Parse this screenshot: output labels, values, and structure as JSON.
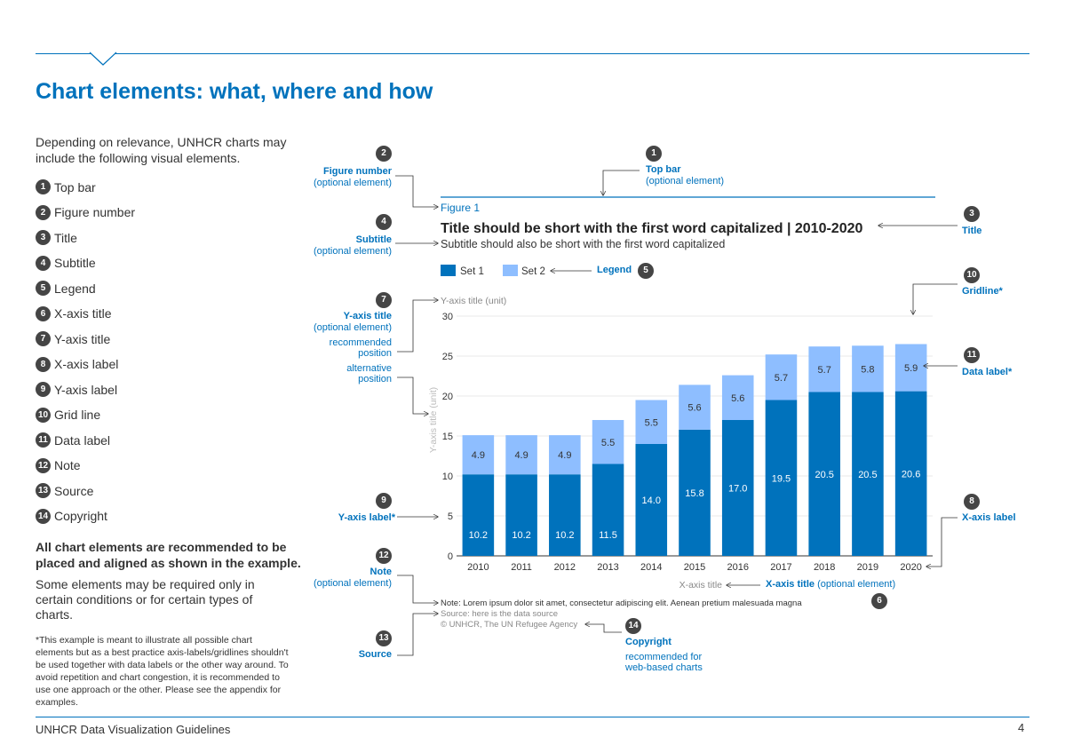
{
  "page": {
    "title": "Chart elements: what, where and how",
    "intro": "Depending on relevance, UNHCR charts may include the following visual elements.",
    "elements": [
      {
        "num": "1",
        "label": "Top bar"
      },
      {
        "num": "2",
        "label": "Figure number"
      },
      {
        "num": "3",
        "label": "Title"
      },
      {
        "num": "4",
        "label": "Subtitle"
      },
      {
        "num": "5",
        "label": "Legend"
      },
      {
        "num": "6",
        "label": "X-axis title"
      },
      {
        "num": "7",
        "label": "Y-axis title"
      },
      {
        "num": "8",
        "label": "X-axis label"
      },
      {
        "num": "9",
        "label": "Y-axis label"
      },
      {
        "num": "10",
        "label": "Grid line"
      },
      {
        "num": "11",
        "label": "Data label"
      },
      {
        "num": "12",
        "label": "Note"
      },
      {
        "num": "13",
        "label": "Source"
      },
      {
        "num": "14",
        "label": "Copyright"
      }
    ],
    "recommendation": "All chart elements are recommended to be placed and aligned as shown in the example.",
    "conditions": "Some elements may be required only in certain conditions or for certain types of charts.",
    "footnote": "*This example is meant to illustrate all possible chart elements but as a best practice axis-labels/gridlines shouldn't be used together with data labels or the other way around. To avoid repetition and chart congestion, it is recommended to use one approach or the other. Please see the appendix for examples.",
    "footer": "UNHCR Data Visualization Guidelines",
    "page_number": "4"
  },
  "annotations": {
    "a1_num": "1",
    "a1_title": "Top bar",
    "a1_sub": "(optional element)",
    "a2_num": "2",
    "a2_title": "Figure number",
    "a2_sub": "(optional element)",
    "a3_num": "3",
    "a3_title": "Title",
    "a4_num": "4",
    "a4_title": "Subtitle",
    "a4_sub": "(optional element)",
    "a5_num": "5",
    "a5_title": "Legend",
    "a6_num": "6",
    "a6_title": "X-axis title",
    "a6_sub": "(optional element)",
    "a7_num": "7",
    "a7_title": "Y-axis title",
    "a7_sub": "(optional element)",
    "a7_rec1": "recommended",
    "a7_rec2": "position",
    "a7_alt1": "alternative",
    "a7_alt2": "position",
    "a8_num": "8",
    "a8_title": "X-axis label",
    "a9_num": "9",
    "a9_title": "Y-axis label*",
    "a10_num": "10",
    "a10_title": "Gridline*",
    "a11_num": "11",
    "a11_title": "Data label*",
    "a12_num": "12",
    "a12_title": "Note",
    "a12_sub": "(optional element)",
    "a13_num": "13",
    "a13_title": "Source",
    "a14_num": "14",
    "a14_title": "Copyright",
    "a14_sub1": "recommended for",
    "a14_sub2": "web-based charts"
  },
  "chart_data": {
    "type": "bar",
    "stacked": true,
    "figure_number": "Figure 1",
    "title": "Title should be short with the first word capitalized | 2010-2020",
    "subtitle": "Subtitle should also be short with the first word capitalized",
    "ylabel": "Y-axis title (unit)",
    "ylabel_alt": "Y-axis title (unit)",
    "xlabel": "X-axis title",
    "ylim": [
      0,
      30
    ],
    "yticks": [
      0,
      5,
      10,
      15,
      20,
      25,
      30
    ],
    "categories": [
      "2010",
      "2011",
      "2012",
      "2013",
      "2014",
      "2015",
      "2016",
      "2017",
      "2018",
      "2019",
      "2020"
    ],
    "series": [
      {
        "name": "Set 1",
        "color": "#0072BC",
        "values": [
          10.2,
          10.2,
          10.2,
          11.5,
          14.0,
          15.8,
          17.0,
          19.5,
          20.5,
          20.5,
          20.6
        ]
      },
      {
        "name": "Set 2",
        "color": "#8EBEFF",
        "values": [
          4.9,
          4.9,
          4.9,
          5.5,
          5.5,
          5.6,
          5.6,
          5.7,
          5.7,
          5.8,
          5.9
        ]
      }
    ],
    "grid": true,
    "legend_position": "top-left",
    "note": "Note: Lorem ipsum dolor sit amet, consectetur adipiscing elit. Aenean pretium malesuada magna",
    "source": "Source: here is the data source",
    "copyright": "© UNHCR, The UN Refugee Agency"
  }
}
